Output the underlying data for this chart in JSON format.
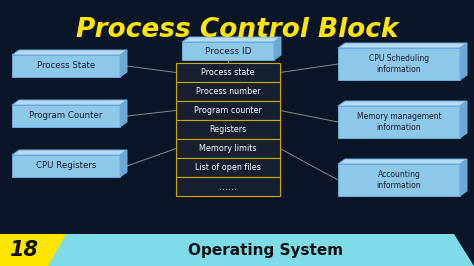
{
  "title": "Process Control Block",
  "title_color": "#FFE600",
  "bg_color": "#0a1628",
  "box_face_color": "#8ec8e8",
  "box_edge_color": "#6aabe0",
  "box_top_color": "#b8daf0",
  "box_side_color": "#6aaad0",
  "table_bg": "#162030",
  "table_border": "#ccaa00",
  "table_text_color": "#FFFFFF",
  "left_box_texts": [
    "Process State",
    "Program Counter",
    "CPU Registers"
  ],
  "right_box_texts": [
    "CPU Scheduling\ninformation",
    "Memory management\ninformation",
    "Accounting\ninformation"
  ],
  "center_top_label": "Process ID",
  "center_rows": [
    "Process state",
    "Process number",
    "Program counter",
    "Registers",
    "Memory limits",
    "List of open files",
    "......"
  ],
  "bottom_num": "18",
  "bottom_text": "Operating System",
  "bottom_num_bg": "#FFE600",
  "bottom_text_bg": "#7ddce8",
  "line_color": "#888888"
}
